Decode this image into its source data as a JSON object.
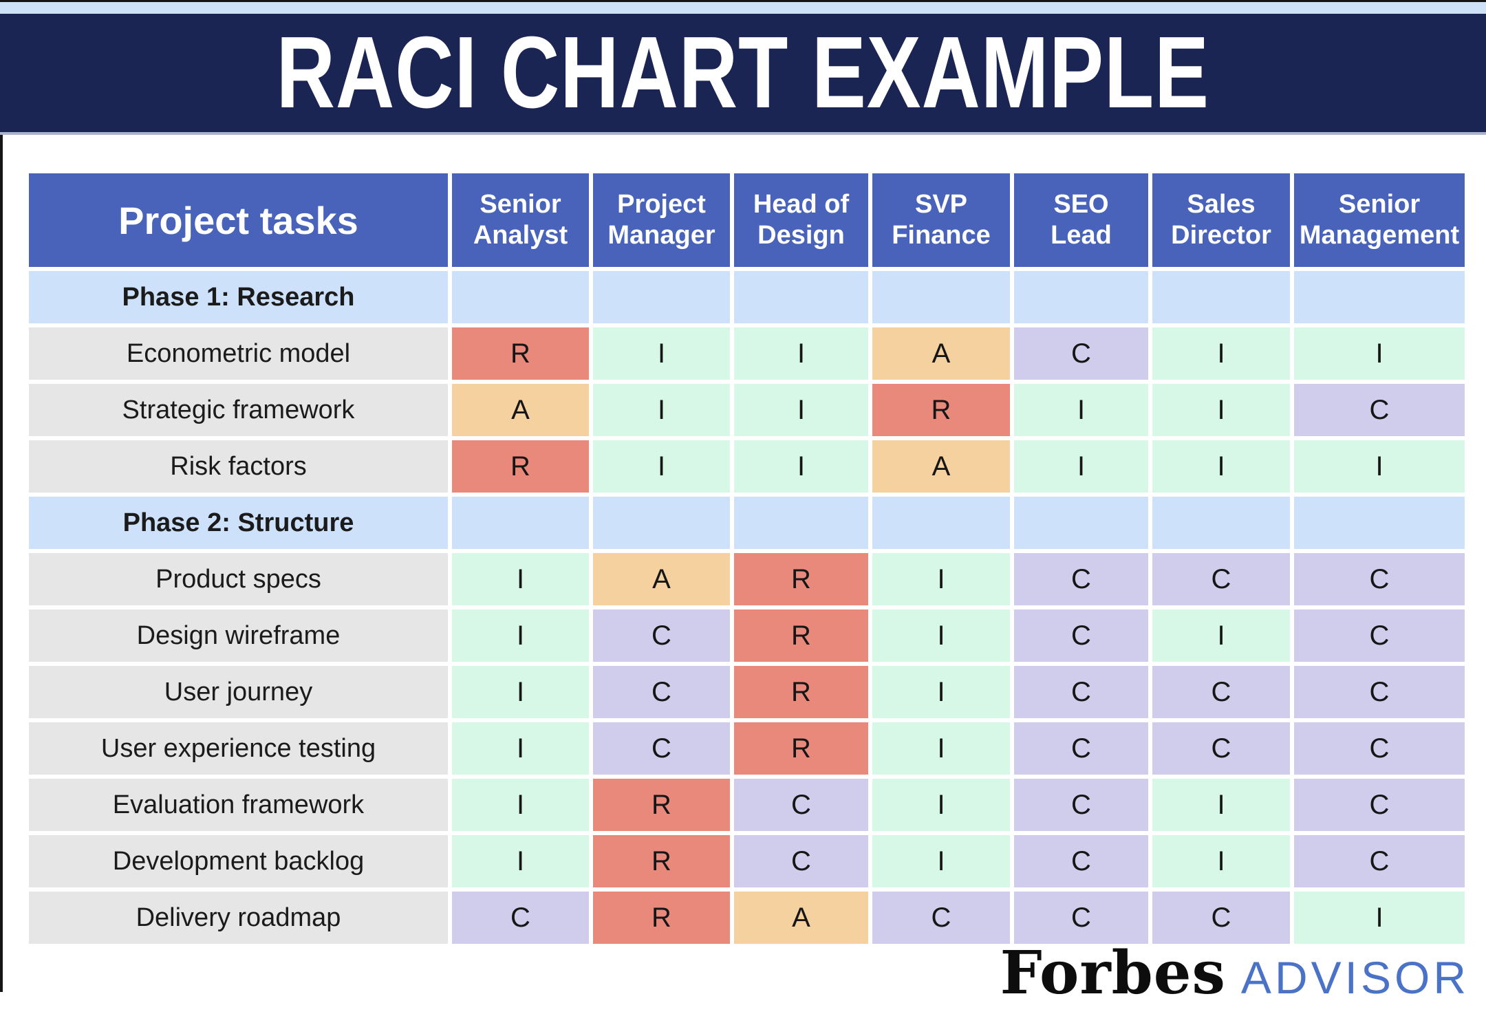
{
  "page": {
    "title": "RACI CHART EXAMPLE",
    "brand": {
      "name": "Forbes",
      "suffix": "ADVISOR"
    }
  },
  "colors": {
    "title_bar_navy": "#1b2553",
    "top_strip_blue": "#cfe3f8",
    "header_blue": "#4863b9",
    "phase_row_blue": "#cde1fa",
    "task_cell_gray": "#e6e6e6",
    "advisor_blue": "#4a73c8"
  },
  "table": {
    "task_header": "Project tasks",
    "roles": [
      "Senior\nAnalyst",
      "Project\nManager",
      "Head of\nDesign",
      "SVP\nFinance",
      "SEO\nLead",
      "Sales\nDirector",
      "Senior\nManagement"
    ],
    "cell_colors": {
      "R": "#e9897c",
      "A": "#f4d19e",
      "C": "#cfccec",
      "I": "#d7f8e6"
    },
    "rows": [
      {
        "type": "phase",
        "label": "Phase 1: Research"
      },
      {
        "type": "task",
        "label": "Econometric model",
        "values": [
          "R",
          "I",
          "I",
          "A",
          "C",
          "I",
          "I"
        ]
      },
      {
        "type": "task",
        "label": "Strategic framework",
        "values": [
          "A",
          "I",
          "I",
          "R",
          "I",
          "I",
          "C"
        ]
      },
      {
        "type": "task",
        "label": "Risk factors",
        "values": [
          "R",
          "I",
          "I",
          "A",
          "I",
          "I",
          "I"
        ]
      },
      {
        "type": "phase",
        "label": "Phase 2: Structure"
      },
      {
        "type": "task",
        "label": "Product specs",
        "values": [
          "I",
          "A",
          "R",
          "I",
          "C",
          "C",
          "C"
        ]
      },
      {
        "type": "task",
        "label": "Design wireframe",
        "values": [
          "I",
          "C",
          "R",
          "I",
          "C",
          "I",
          "C"
        ]
      },
      {
        "type": "task",
        "label": "User journey",
        "values": [
          "I",
          "C",
          "R",
          "I",
          "C",
          "C",
          "C"
        ]
      },
      {
        "type": "task",
        "label": "User experience testing",
        "values": [
          "I",
          "C",
          "R",
          "I",
          "C",
          "C",
          "C"
        ]
      },
      {
        "type": "task",
        "label": "Evaluation framework",
        "values": [
          "I",
          "R",
          "C",
          "I",
          "C",
          "I",
          "C"
        ]
      },
      {
        "type": "task",
        "label": "Development backlog",
        "values": [
          "I",
          "R",
          "C",
          "I",
          "C",
          "I",
          "C"
        ]
      },
      {
        "type": "task",
        "label": "Delivery roadmap",
        "values": [
          "C",
          "R",
          "A",
          "C",
          "C",
          "C",
          "I"
        ]
      }
    ]
  },
  "chart_data": {
    "type": "table",
    "title": "RACI CHART EXAMPLE",
    "columns": [
      "Project tasks",
      "Senior Analyst",
      "Project Manager",
      "Head of Design",
      "SVP Finance",
      "SEO Lead",
      "Sales Director",
      "Senior Management"
    ],
    "rows": [
      [
        "Phase 1: Research",
        "",
        "",
        "",
        "",
        "",
        "",
        ""
      ],
      [
        "Econometric model",
        "R",
        "I",
        "I",
        "A",
        "C",
        "I",
        "I"
      ],
      [
        "Strategic framework",
        "A",
        "I",
        "I",
        "R",
        "I",
        "I",
        "C"
      ],
      [
        "Risk factors",
        "R",
        "I",
        "I",
        "A",
        "I",
        "I",
        "I"
      ],
      [
        "Phase 2: Structure",
        "",
        "",
        "",
        "",
        "",
        "",
        ""
      ],
      [
        "Product specs",
        "I",
        "A",
        "R",
        "I",
        "C",
        "C",
        "C"
      ],
      [
        "Design wireframe",
        "I",
        "C",
        "R",
        "I",
        "C",
        "I",
        "C"
      ],
      [
        "User journey",
        "I",
        "C",
        "R",
        "I",
        "C",
        "C",
        "C"
      ],
      [
        "User experience testing",
        "I",
        "C",
        "R",
        "I",
        "C",
        "C",
        "C"
      ],
      [
        "Evaluation framework",
        "I",
        "R",
        "C",
        "I",
        "C",
        "I",
        "C"
      ],
      [
        "Development backlog",
        "I",
        "R",
        "C",
        "I",
        "C",
        "I",
        "C"
      ],
      [
        "Delivery roadmap",
        "C",
        "R",
        "A",
        "C",
        "C",
        "C",
        "I"
      ]
    ],
    "cell_color_legend": {
      "R": "#e9897c",
      "A": "#f4d19e",
      "C": "#cfccec",
      "I": "#d7f8e6"
    }
  }
}
